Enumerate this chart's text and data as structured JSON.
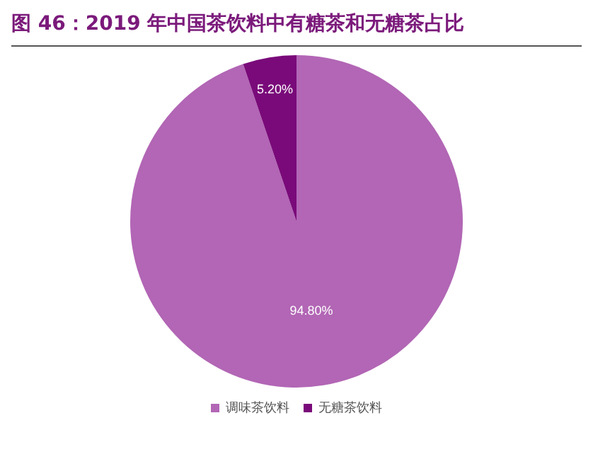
{
  "chart_data": {
    "type": "pie",
    "title": "图 46：2019 年中国茶饮料中有糖茶和无糖茶占比",
    "categories": [
      "调味茶饮料",
      "无糖茶饮料"
    ],
    "values": [
      94.8,
      5.2
    ],
    "colors": [
      "#b266b5",
      "#7a0a7a"
    ],
    "value_labels": [
      "94.80%",
      "5.20%"
    ],
    "legend": "bottom"
  }
}
